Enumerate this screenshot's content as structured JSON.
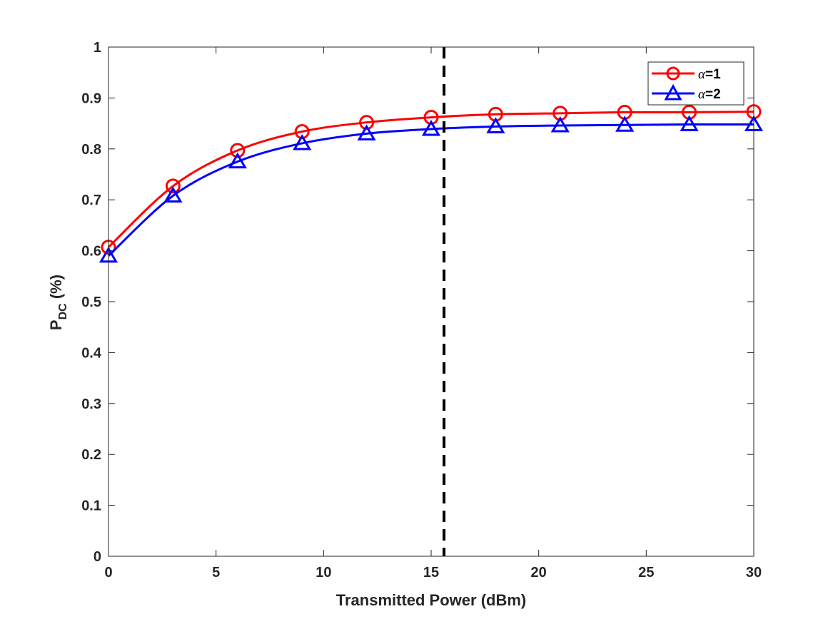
{
  "chart_data": {
    "type": "line",
    "xlabel": "Transmitted Power (dBm)",
    "ylabel_main": "P",
    "ylabel_sub": "DC",
    "ylabel_unit": " (%)",
    "xlim": [
      0,
      30
    ],
    "ylim": [
      0,
      1
    ],
    "xticks": [
      0,
      5,
      10,
      15,
      20,
      25,
      30
    ],
    "xtick_labels": [
      "0",
      "5",
      "10",
      "15",
      "20",
      "25",
      "30"
    ],
    "yticks": [
      0,
      0.1,
      0.2,
      0.3,
      0.4,
      0.5,
      0.6,
      0.7,
      0.8,
      0.9,
      1
    ],
    "ytick_labels": [
      "0",
      "0.1",
      "0.2",
      "0.3",
      "0.4",
      "0.5",
      "0.6",
      "0.7",
      "0.8",
      "0.9",
      "1"
    ],
    "grid": false,
    "legend_position": "top-right",
    "vertical_line": {
      "x": 15.6,
      "style": "dashed",
      "color": "#000000"
    },
    "series": [
      {
        "name_symbol": "α",
        "name_rest": "=1",
        "marker": "circle",
        "color": "#ff0000",
        "x": [
          0,
          3,
          6,
          9,
          12,
          15,
          18,
          21,
          24,
          27,
          30
        ],
        "values": [
          0.607,
          0.727,
          0.797,
          0.834,
          0.852,
          0.862,
          0.868,
          0.87,
          0.872,
          0.872,
          0.873
        ]
      },
      {
        "name_symbol": "α",
        "name_rest": "=2",
        "marker": "triangle",
        "color": "#0000ff",
        "x": [
          0,
          3,
          6,
          9,
          12,
          15,
          18,
          21,
          24,
          27,
          30
        ],
        "values": [
          0.59,
          0.708,
          0.775,
          0.811,
          0.83,
          0.839,
          0.844,
          0.846,
          0.847,
          0.848,
          0.848
        ]
      }
    ]
  }
}
